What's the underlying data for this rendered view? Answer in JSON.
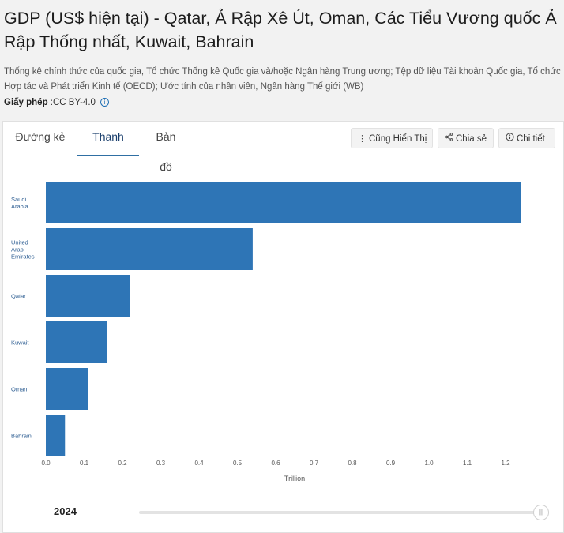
{
  "page": {
    "title": "GDP (US$ hiện tại) - Qatar, Ả Rập Xê Út, Oman, Các Tiểu Vương quốc Ả Rập Thống nhất, Kuwait, Bahrain",
    "sources": "Thống kê chính thức của quốc gia, Tổ chức Thống kê Quốc gia và/hoặc Ngân hàng Trung ương; Tệp dữ liệu Tài khoản Quốc gia, Tổ chức Hợp tác và Phát triển Kinh tế (OECD); Ước tính của nhân viên, Ngân hàng Thế giới (WB)",
    "license_label": "Giấy phép",
    "license_value": " :CC BY-4.0",
    "info_icon": "i"
  },
  "tabs": [
    {
      "label": "Đường kẻ",
      "active": false
    },
    {
      "label": "Thanh",
      "active": true
    },
    {
      "label": "Bản đồ",
      "active": false
    }
  ],
  "toolbar": {
    "display_label": "Cũng Hiển Thị",
    "display_icon": "⋮",
    "share_label": "Chia sẻ",
    "share_icon": "share-icon",
    "details_label": "Chi tiết",
    "details_icon": "info-icon"
  },
  "chart_data": {
    "type": "bar",
    "orientation": "horizontal",
    "categories": [
      "Saudi Arabia",
      "United Arab Emirates",
      "Qatar",
      "Kuwait",
      "Oman",
      "Bahrain"
    ],
    "category_lines": [
      [
        "Saudi",
        "Arabia"
      ],
      [
        "United",
        "Arab",
        "Emirates"
      ],
      [
        "Qatar"
      ],
      [
        "Kuwait"
      ],
      [
        "Oman"
      ],
      [
        "Bahrain"
      ]
    ],
    "values": [
      1.24,
      0.54,
      0.22,
      0.16,
      0.11,
      0.05
    ],
    "xlabel": "Trillion",
    "xlim": [
      0,
      1.25
    ],
    "xticks": [
      0,
      0.1,
      0.2,
      0.3,
      0.4,
      0.5,
      0.6,
      0.7,
      0.8,
      0.9,
      1.0,
      1.1,
      1.2
    ],
    "tick_labels": [
      "0.0",
      "0.1",
      "0.2",
      "0.3",
      "0.4",
      "0.5",
      "0.6",
      "0.7",
      "0.8",
      "0.9",
      "1.0",
      "1.1",
      "1.2"
    ],
    "bar_color": "#2e75b6",
    "grid": false
  },
  "slider": {
    "year": "2024",
    "handle_icon": "|||"
  }
}
